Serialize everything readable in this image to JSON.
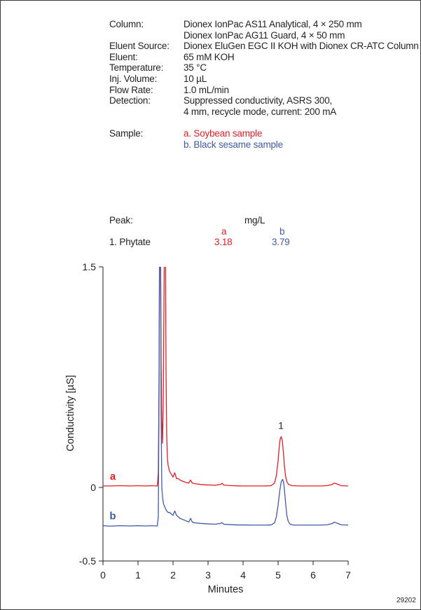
{
  "conditions": {
    "column_label": "Column:",
    "column_line1": "Dionex IonPac AS11 Analytical, 4 × 250 mm",
    "column_line2": "Dionex IonPac AG11 Guard, 4 × 50 mm",
    "eluent_source_label": "Eluent Source:",
    "eluent_source": "Dionex EluGen EGC II KOH with Dionex CR-ATC Column",
    "eluent_label": "Eluent:",
    "eluent": "65 mM KOH",
    "temperature_label": "Temperature:",
    "temperature": "35 °C",
    "inj_volume_label": "Inj. Volume:",
    "inj_volume": "10 µL",
    "flow_rate_label": "Flow Rate:",
    "flow_rate": "1.0 mL/min",
    "detection_label": "Detection:",
    "detection_line1": "Suppressed conductivity, ASRS 300,",
    "detection_line2": "4 mm, recycle mode, current: 200 mA",
    "sample_label": "Sample:",
    "sample_a": "a. Soybean sample",
    "sample_b": "b. Black sesame sample"
  },
  "peak_table": {
    "label": "Peak:",
    "unit": "mg/L",
    "col_a": "a",
    "col_b": "b",
    "peak_name": "1. Phytate",
    "value_a": "3.18",
    "value_b": "3.79"
  },
  "figure_id": "29202",
  "chart_data": {
    "type": "line",
    "xlabel": "Minutes",
    "ylabel": "Conductivity [µS]",
    "xlim": [
      0,
      7
    ],
    "ylim": [
      -0.5,
      1.5
    ],
    "x_ticks": [
      0,
      1,
      2,
      3,
      4,
      5,
      6,
      7
    ],
    "y_ticks": [
      -0.5,
      0,
      1.5
    ],
    "y_tick_labels": [
      "-0.5",
      "0",
      "1.5"
    ],
    "grid": false,
    "peak_labels": [
      {
        "text": "1",
        "x": 5.08,
        "y": 0.34
      }
    ],
    "colors": {
      "a": "#e31e24",
      "b": "#3f5aa8",
      "axis": "#231f20"
    },
    "series": [
      {
        "name": "a",
        "color": "#e31e24",
        "x": [
          0,
          0.2,
          0.5,
          0.8,
          1.0,
          1.2,
          1.4,
          1.55,
          1.58,
          1.6,
          1.62,
          1.64,
          1.66,
          1.68,
          1.7,
          1.72,
          1.74,
          1.76,
          1.78,
          1.8,
          1.82,
          1.84,
          1.86,
          1.9,
          1.95,
          2.0,
          2.05,
          2.1,
          2.15,
          2.2,
          2.3,
          2.4,
          2.45,
          2.5,
          2.55,
          2.6,
          2.8,
          3.0,
          3.2,
          3.35,
          3.4,
          3.45,
          3.6,
          3.8,
          4.0,
          4.3,
          4.6,
          4.8,
          4.9,
          4.95,
          5.0,
          5.03,
          5.06,
          5.09,
          5.12,
          5.15,
          5.18,
          5.21,
          5.25,
          5.3,
          5.4,
          5.6,
          5.9,
          6.2,
          6.4,
          6.55,
          6.6,
          6.7,
          6.8,
          7.0
        ],
        "y": [
          0.01,
          0.01,
          0.012,
          0.01,
          0.012,
          0.01,
          0.012,
          0.01,
          0.1,
          0.7,
          1.9,
          1.9,
          0.85,
          0.45,
          0.3,
          0.55,
          1.2,
          1.9,
          1.9,
          0.8,
          0.35,
          0.2,
          0.15,
          0.11,
          0.09,
          0.07,
          0.1,
          0.06,
          0.06,
          0.05,
          0.04,
          0.032,
          0.03,
          0.05,
          0.03,
          0.026,
          0.02,
          0.017,
          0.015,
          0.02,
          0.028,
          0.016,
          0.013,
          0.011,
          0.01,
          0.01,
          0.01,
          0.012,
          0.03,
          0.08,
          0.18,
          0.27,
          0.33,
          0.345,
          0.32,
          0.24,
          0.15,
          0.08,
          0.04,
          0.02,
          0.012,
          0.01,
          0.01,
          0.01,
          0.012,
          0.02,
          0.03,
          0.022,
          0.012,
          0.01
        ]
      },
      {
        "name": "b",
        "color": "#3f5aa8",
        "x": [
          0,
          0.2,
          0.5,
          0.8,
          1.0,
          1.2,
          1.4,
          1.55,
          1.58,
          1.6,
          1.62,
          1.64,
          1.66,
          1.68,
          1.7,
          1.72,
          1.74,
          1.76,
          1.78,
          1.8,
          1.82,
          1.84,
          1.86,
          1.9,
          1.95,
          2.0,
          2.05,
          2.1,
          2.15,
          2.2,
          2.3,
          2.4,
          2.45,
          2.5,
          2.55,
          2.6,
          2.8,
          3.0,
          3.2,
          3.35,
          3.4,
          3.45,
          3.6,
          3.8,
          4.0,
          4.3,
          4.6,
          4.8,
          4.9,
          4.95,
          5.0,
          5.05,
          5.09,
          5.13,
          5.16,
          5.19,
          5.22,
          5.25,
          5.29,
          5.34,
          5.45,
          5.6,
          5.9,
          6.2,
          6.4,
          6.55,
          6.6,
          6.7,
          6.8,
          7.0
        ],
        "y": [
          -0.26,
          -0.263,
          -0.26,
          -0.262,
          -0.26,
          -0.262,
          -0.26,
          -0.262,
          -0.2,
          0.6,
          1.9,
          1.9,
          0.5,
          0.0,
          -0.06,
          -0.1,
          -0.12,
          -0.13,
          -0.14,
          -0.15,
          -0.16,
          -0.165,
          -0.17,
          -0.17,
          -0.18,
          -0.19,
          -0.16,
          -0.19,
          -0.2,
          -0.21,
          -0.22,
          -0.23,
          -0.235,
          -0.21,
          -0.235,
          -0.24,
          -0.245,
          -0.248,
          -0.25,
          -0.245,
          -0.24,
          -0.25,
          -0.252,
          -0.255,
          -0.255,
          -0.256,
          -0.256,
          -0.255,
          -0.24,
          -0.2,
          -0.12,
          -0.02,
          0.04,
          0.055,
          0.03,
          -0.04,
          -0.12,
          -0.19,
          -0.23,
          -0.25,
          -0.256,
          -0.256,
          -0.256,
          -0.256,
          -0.254,
          -0.245,
          -0.236,
          -0.244,
          -0.254,
          -0.256
        ]
      }
    ]
  }
}
